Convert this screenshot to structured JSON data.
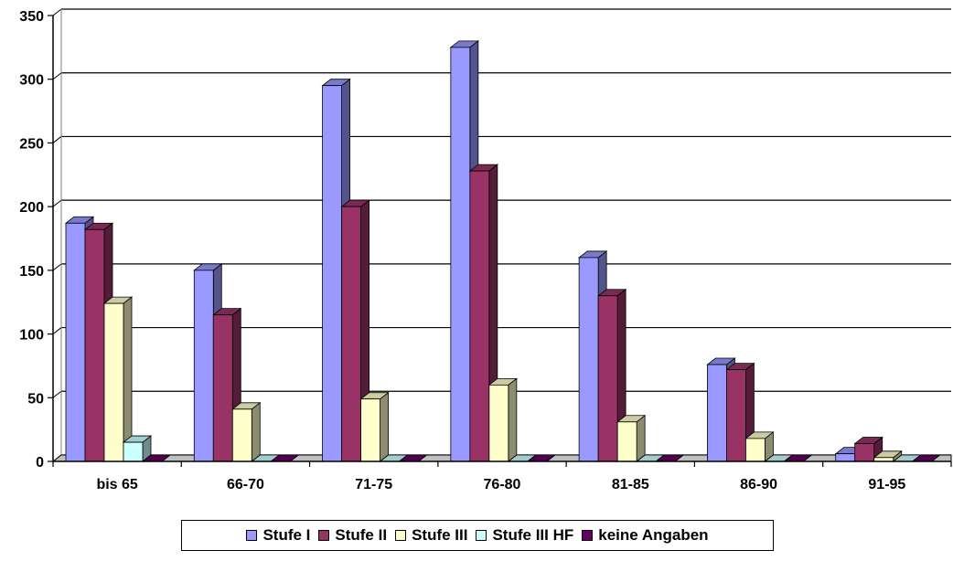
{
  "chart_data": {
    "type": "bar",
    "categories": [
      "bis 65",
      "66-70",
      "71-75",
      "76-80",
      "81-85",
      "86-90",
      "91-95"
    ],
    "series": [
      {
        "name": "Stufe I",
        "color": "#9999FF",
        "values": [
          187,
          150,
          295,
          325,
          160,
          76,
          6
        ]
      },
      {
        "name": "Stufe II",
        "color": "#993366",
        "values": [
          182,
          115,
          200,
          228,
          130,
          72,
          14
        ]
      },
      {
        "name": "Stufe III",
        "color": "#FFFFCC",
        "values": [
          124,
          41,
          49,
          60,
          31,
          18,
          3
        ]
      },
      {
        "name": "Stufe III HF",
        "color": "#CCFFFF",
        "values": [
          15,
          0,
          0,
          0,
          0,
          0,
          0
        ]
      },
      {
        "name": "keine Angaben",
        "color": "#660066",
        "values": [
          0,
          0,
          0,
          0,
          0,
          0,
          0
        ]
      }
    ],
    "ylim": [
      0,
      350
    ],
    "yticks": [
      "0",
      "50",
      "100",
      "150",
      "200",
      "250",
      "300",
      "350"
    ],
    "grid": true,
    "style": "3d-column",
    "legend_position": "bottom"
  }
}
